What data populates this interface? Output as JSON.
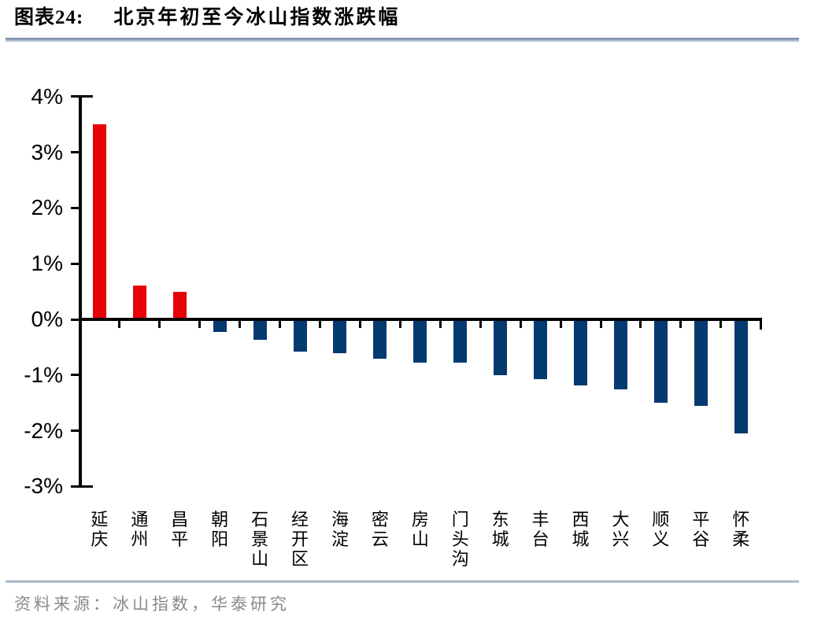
{
  "figure": {
    "label": "图表24:",
    "title": "北京年初至今冰山指数涨跌幅",
    "source": "资料来源：冰山指数，华泰研究"
  },
  "chart_data": {
    "type": "bar",
    "title": "北京年初至今冰山指数涨跌幅",
    "categories": [
      "延庆",
      "通州",
      "昌平",
      "朝阳",
      "石景山",
      "经开区",
      "海淀",
      "密云",
      "房山",
      "门头沟",
      "东城",
      "丰台",
      "西城",
      "大兴",
      "顺义",
      "平谷",
      "怀柔"
    ],
    "values": [
      3.5,
      0.61,
      0.5,
      -0.23,
      -0.37,
      -0.58,
      -0.61,
      -0.7,
      -0.77,
      -0.77,
      -1.0,
      -1.08,
      -1.18,
      -1.26,
      -1.5,
      -1.56,
      -2.05
    ],
    "unit": "%",
    "xlabel": "",
    "ylabel": "",
    "ylim": [
      -3,
      4
    ],
    "y_tick_labels": [
      "4%",
      "3%",
      "2%",
      "1%",
      "0%",
      "-1%",
      "-2%",
      "-3%"
    ],
    "grid": false,
    "legend": "none",
    "colors": {
      "positive": "#e70008",
      "negative": "#053a70"
    }
  }
}
